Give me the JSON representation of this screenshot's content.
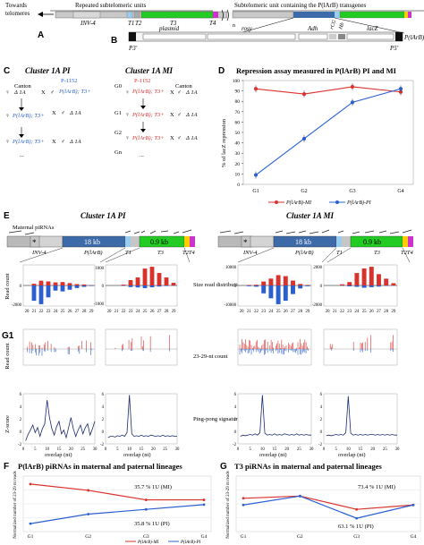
{
  "panelA": {
    "letter": "A",
    "towards": "Towards",
    "telomeres": "telomeres",
    "repeated": "Repeated subtelomeric units",
    "subunit": "Subtelomeric unit containing the P(lArB) transgenes",
    "inv4": "INV-4",
    "t1": "T1",
    "t2": "T2",
    "t3": "T3",
    "t4n": "T4",
    "n": "n"
  },
  "panelB": {
    "letter": "B",
    "plasmid": "plasmid",
    "rosy": "rosy",
    "adh": "Adh",
    "rcg": "rCG",
    "hb": "Hb",
    "lacz": "lacZ",
    "p3": "P3'",
    "p5": "P5'",
    "plarb": "P(lArB)"
  },
  "panelC": {
    "letter": "C",
    "title_pi": "Cluster 1A PI",
    "title_mi": "Cluster 1A MI",
    "canton": "Canton",
    "p1152": "P-1152",
    "d1a": "Δ 1A",
    "plarb_t3": "P(lArB); T3+",
    "cross": "X",
    "female": "♀",
    "male": "♂",
    "g0": "G0",
    "g1": "G1",
    "g2": "G2",
    "gn": "Gn",
    "dots": "..."
  },
  "panelD": {
    "letter": "D",
    "title": "Repression assay measured in P(lArB) PI and MI",
    "ylabel": "% of lacZ repression",
    "legend_mi": "P(lArB)-MI",
    "legend_pi": "P(lArB)-PI"
  },
  "panelE": {
    "letter": "E",
    "g1": "G1",
    "maternal": "Maternal piRNAs",
    "title_pi": "Cluster 1A PI",
    "title_mi": "Cluster 1A MI",
    "kb18": "18 kb",
    "kb09": "0.9 kb",
    "inv4": "INV-4",
    "plarb": "P(lArB)",
    "t1": "T1",
    "t3": "T3",
    "t2t4": "T2T4",
    "read_count": "Read count",
    "zscore": "Z-score",
    "size_dist": "Size read distribution",
    "nt_count": "23-29-nt count",
    "pingpong": "Ping-pong signature",
    "overlap": "overlap (nt)"
  },
  "panelF": {
    "letter": "F",
    "title": "P(lArB) piRNAs in maternal and paternal lineages",
    "ylabel": "Normalized number of 23-29 nt reads",
    "pct_mi": "35.7 % 1U (MI)",
    "pct_pi": "35.8 % 1U (PI)",
    "legend_mi": "P(lArB)-MI",
    "legend_pi": "P(lArB)-PI"
  },
  "panelG": {
    "letter": "G",
    "title": "T3 piRNAs in maternal and paternal lineages",
    "ylabel": "Normalized number of 23-29 nt reads",
    "pct_mi": "73.4 % 1U (MI)",
    "pct_pi": "63.1 % 1U (PI)"
  },
  "colors": {
    "mi": "#d9322c",
    "pi": "#2b5fcf",
    "t3": "#22cc22",
    "plarb": "#3d6aa8",
    "pink": "#ee44aa",
    "gray": "#b9b9b9"
  },
  "chart_data": [
    {
      "type": "line",
      "panel": "D",
      "title": "Repression assay measured in P(lArB) PI and MI",
      "ylabel": "% of lacZ repression",
      "categories": [
        "G1",
        "G2",
        "G3",
        "G4"
      ],
      "ylim": [
        0,
        100
      ],
      "yticks": [
        "0",
        "10",
        "20",
        "30",
        "40",
        "50",
        "60",
        "70",
        "80",
        "90",
        "100"
      ],
      "series": [
        {
          "name": "P(lArB)-MI",
          "values": [
            92,
            87,
            94,
            89
          ]
        },
        {
          "name": "P(lArB)-PI",
          "values": [
            9,
            44,
            79,
            92
          ]
        }
      ]
    },
    {
      "type": "bar",
      "panel": "E-size-PI-plarb",
      "categories": [
        "20",
        "21",
        "22",
        "23",
        "24",
        "25",
        "26",
        "27",
        "28",
        "29"
      ],
      "yticks": [
        "0",
        "-2000"
      ],
      "series": [
        {
          "name": "sense",
          "values": [
            0,
            100,
            280,
            240,
            180,
            200,
            140,
            80,
            60,
            20
          ]
        },
        {
          "name": "antisense",
          "values": [
            0,
            -900,
            -1100,
            -700,
            -300,
            -350,
            -250,
            -150,
            -80,
            -30
          ]
        }
      ]
    },
    {
      "type": "bar",
      "panel": "E-size-PI-T3",
      "categories": [
        "20",
        "21",
        "22",
        "23",
        "24",
        "25",
        "26",
        "27",
        "28",
        "29"
      ],
      "yticks": [
        "1000",
        "0",
        "-1000"
      ],
      "series": [
        {
          "name": "sense",
          "values": [
            0,
            0,
            50,
            300,
            450,
            950,
            1050,
            700,
            450,
            150
          ]
        },
        {
          "name": "antisense",
          "values": [
            0,
            0,
            -20,
            -90,
            -110,
            -150,
            -100,
            -60,
            -30,
            -10
          ]
        }
      ]
    },
    {
      "type": "bar",
      "panel": "E-size-MI-plarb",
      "categories": [
        "20",
        "21",
        "22",
        "23",
        "24",
        "25",
        "26",
        "27",
        "28",
        "29"
      ],
      "yticks": [
        "10000",
        "0",
        "-10000"
      ],
      "series": [
        {
          "name": "sense",
          "values": [
            0,
            200,
            300,
            1600,
            2800,
            4200,
            3800,
            2000,
            600,
            200
          ]
        },
        {
          "name": "antisense",
          "values": [
            0,
            -300,
            -500,
            -3200,
            -5200,
            -7600,
            -6200,
            -3500,
            -1200,
            -300
          ]
        }
      ]
    },
    {
      "type": "bar",
      "panel": "E-size-MI-T3",
      "categories": [
        "20",
        "21",
        "22",
        "23",
        "24",
        "25",
        "26",
        "27",
        "28",
        "29"
      ],
      "yticks": [
        "2000",
        "0",
        "-2000"
      ],
      "series": [
        {
          "name": "sense",
          "values": [
            0,
            0,
            100,
            300,
            1100,
            1500,
            1650,
            1000,
            600,
            200
          ]
        },
        {
          "name": "antisense",
          "values": [
            0,
            0,
            -20,
            -80,
            -120,
            -200,
            -150,
            -100,
            -40,
            -10
          ]
        }
      ]
    },
    {
      "type": "line",
      "panel": "E-pingpong-PI-plarb",
      "xlabel": "overlap (nt)",
      "ylabel": "Z-score",
      "x": [
        1,
        2,
        3,
        4,
        5,
        6,
        7,
        8,
        9,
        10,
        11,
        12,
        13,
        14,
        15,
        16,
        17,
        18,
        19,
        20,
        21,
        22,
        23,
        24,
        25,
        26,
        27,
        28,
        29,
        30
      ],
      "xticks": [
        "0",
        "5",
        "10",
        "15",
        "20",
        "25",
        "30"
      ],
      "yticks": [
        "-2",
        "0",
        "2",
        "4",
        "6"
      ],
      "values": [
        -1.5,
        -0.5,
        0.2,
        1.0,
        -0.2,
        0.6,
        -0.8,
        0.4,
        1.2,
        5.0,
        2.2,
        0.4,
        -0.6,
        0.8,
        1.6,
        -0.4,
        0.2,
        -1.0,
        0.6,
        2.2,
        0.4,
        -0.8,
        0.2,
        1.0,
        -0.4,
        0.6,
        1.2,
        -0.6,
        0.4,
        1.6
      ]
    },
    {
      "type": "line",
      "panel": "E-pingpong-PI-T3",
      "xlabel": "overlap (nt)",
      "x": [
        1,
        2,
        3,
        4,
        5,
        6,
        7,
        8,
        9,
        10,
        11,
        12,
        13,
        14,
        15,
        16,
        17,
        18,
        19,
        20,
        21,
        22,
        23,
        24,
        25,
        26,
        27,
        28,
        29,
        30
      ],
      "xticks": [
        "0",
        "5",
        "10",
        "15",
        "20",
        "25",
        "30"
      ],
      "yticks": [
        "-2",
        "0",
        "2",
        "4",
        "6"
      ],
      "values": [
        -1.0,
        -0.8,
        -0.8,
        -0.9,
        -0.7,
        -0.8,
        -0.6,
        -0.8,
        -0.2,
        5.8,
        -0.4,
        -0.8,
        -0.7,
        -0.8,
        -0.6,
        -0.8,
        -0.7,
        -0.8,
        -0.6,
        -0.7,
        -0.8,
        -0.7,
        -0.8,
        -0.6,
        -0.8,
        -0.7,
        -0.8,
        -0.7,
        -0.8,
        -0.8
      ]
    },
    {
      "type": "line",
      "panel": "E-pingpong-MI-plarb",
      "xlabel": "overlap (nt)",
      "x": [
        1,
        2,
        3,
        4,
        5,
        6,
        7,
        8,
        9,
        10,
        11,
        12,
        13,
        14,
        15,
        16,
        17,
        18,
        19,
        20,
        21,
        22,
        23,
        24,
        25,
        26,
        27,
        28,
        29,
        30
      ],
      "xticks": [
        "0",
        "5",
        "10",
        "15",
        "20",
        "25",
        "30"
      ],
      "yticks": [
        "-2",
        "0",
        "2",
        "4",
        "6"
      ],
      "values": [
        -0.8,
        -0.6,
        -0.7,
        -0.6,
        -0.5,
        -0.6,
        -0.4,
        -0.6,
        -0.2,
        5.8,
        -0.3,
        -0.6,
        -0.5,
        -0.6,
        -0.4,
        -0.6,
        -0.5,
        -0.6,
        -0.4,
        -0.5,
        -0.6,
        -0.5,
        -0.6,
        -0.4,
        -0.6,
        -0.5,
        -0.6,
        -0.5,
        -0.6,
        -0.6
      ]
    },
    {
      "type": "line",
      "panel": "E-pingpong-MI-T3",
      "xlabel": "overlap (nt)",
      "x": [
        1,
        2,
        3,
        4,
        5,
        6,
        7,
        8,
        9,
        10,
        11,
        12,
        13,
        14,
        15,
        16,
        17,
        18,
        19,
        20,
        21,
        22,
        23,
        24,
        25,
        26,
        27,
        28,
        29,
        30
      ],
      "xticks": [
        "0",
        "5",
        "10",
        "15",
        "20",
        "25",
        "30"
      ],
      "yticks": [
        "-2",
        "0",
        "2",
        "4",
        "6"
      ],
      "values": [
        -0.7,
        -0.6,
        -0.7,
        -0.6,
        -0.5,
        -0.6,
        -0.5,
        -0.6,
        -0.2,
        5.6,
        -0.3,
        -0.6,
        -0.5,
        -0.6,
        -0.5,
        -0.6,
        -0.5,
        -0.6,
        -0.5,
        -0.5,
        -0.6,
        -0.5,
        -0.6,
        -0.5,
        -0.6,
        -0.5,
        -0.6,
        -0.5,
        -0.6,
        -0.6
      ]
    },
    {
      "type": "line",
      "panel": "F",
      "title": "P(lArB) piRNAs in maternal and paternal lineages",
      "ylabel": "Normalized number of 23-29 nt reads",
      "categories": [
        "G1",
        "G2",
        "G3",
        "G4"
      ],
      "series": [
        {
          "name": "P(lArB)-MI",
          "values": [
            30,
            26,
            20,
            20
          ]
        },
        {
          "name": "P(lArB)-PI",
          "values": [
            5,
            11,
            14,
            17
          ]
        }
      ]
    },
    {
      "type": "line",
      "panel": "G",
      "title": "T3 piRNAs in maternal and paternal lineages",
      "ylabel": "Normalized number of 23-29 nt reads",
      "categories": [
        "G1",
        "G2",
        "G3",
        "G4"
      ],
      "series": [
        {
          "name": "P(lArB)-MI",
          "values": [
            45,
            46,
            40,
            42
          ]
        },
        {
          "name": "P(lArB)-PI",
          "values": [
            42,
            46,
            36,
            42
          ]
        }
      ]
    }
  ]
}
